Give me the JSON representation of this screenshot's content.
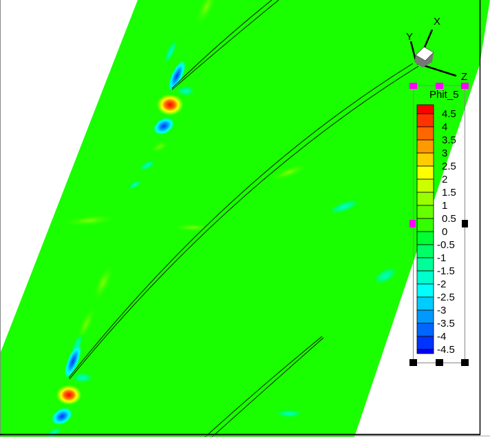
{
  "chart_data": {
    "type": "contour",
    "variable": "Phit_5",
    "legend": {
      "title": "Phit_5",
      "placement": "right",
      "levels": [
        4.5,
        4,
        3.5,
        3,
        2.5,
        2,
        1.5,
        1,
        0.5,
        0,
        -0.5,
        -1,
        -1.5,
        -2,
        -2.5,
        -3,
        -3.5,
        -4,
        -4.5
      ],
      "level_labels": [
        "4.5",
        "4",
        "3.5",
        "3",
        "2.5",
        "2",
        "1.5",
        "1",
        "0.5",
        "0",
        "-0.5",
        "-1",
        "-1.5",
        "-2",
        "-2.5",
        "-3",
        "-3.5",
        "-4",
        "-4.5"
      ],
      "colors": [
        "#ff0000",
        "#ff3300",
        "#ff6600",
        "#ff9900",
        "#ffcc00",
        "#ffff00",
        "#ccff00",
        "#99ff00",
        "#66ff00",
        "#33ff00",
        "#00ff33",
        "#00ff66",
        "#00ff99",
        "#00ffcc",
        "#00ffff",
        "#00ccff",
        "#0099ff",
        "#0066ff",
        "#0033ff",
        "#0000ff"
      ]
    },
    "background_level_color": "#1aff00",
    "axes_triad": {
      "x": "X",
      "y": "Y",
      "z": "Z"
    }
  }
}
